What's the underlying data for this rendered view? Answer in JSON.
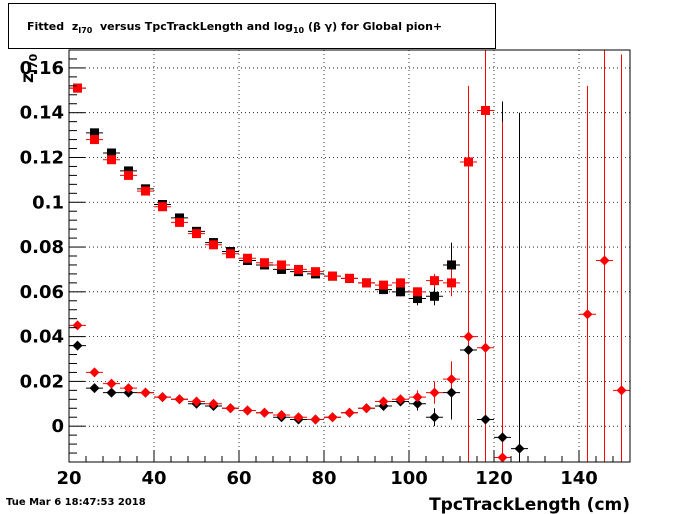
{
  "title": {
    "fitted": "Fitted",
    "z": "z",
    "z_sub": "I70",
    "mid": "versus TpcTrackLength and log",
    "log_sub": "10",
    "tail": "(β γ) for Global pion+"
  },
  "timestamp": "Tue Mar  6 18:47:53 2018",
  "chart_data": {
    "type": "scatter",
    "xlabel": "TpcTrackLength (cm)",
    "ylabel": "z_I70",
    "xlim": [
      20,
      152
    ],
    "ylim": [
      -0.016,
      0.168
    ],
    "grid": true,
    "xticks": [
      20,
      40,
      60,
      80,
      100,
      120,
      140
    ],
    "xtick_labels": [
      "20",
      "40",
      "60",
      "80",
      "100",
      "120",
      "140"
    ],
    "yticks": [
      0,
      0.02,
      0.04,
      0.06,
      0.08,
      0.1,
      0.12,
      0.14,
      0.16
    ],
    "ytick_labels": [
      "0",
      "0.02",
      "0.04",
      "0.06",
      "0.08",
      "0.1",
      "0.12",
      "0.14",
      "0.16"
    ],
    "series": [
      {
        "color": "#000000",
        "marker": "square",
        "x": [
          22,
          26,
          30,
          34,
          38,
          42,
          46,
          50,
          54,
          58,
          62,
          66,
          70,
          74,
          78,
          82,
          86,
          90,
          94,
          98,
          102,
          106,
          110
        ],
        "y": [
          0.151,
          0.131,
          0.122,
          0.114,
          0.106,
          0.099,
          0.093,
          0.087,
          0.082,
          0.078,
          0.074,
          0.072,
          0.07,
          0.069,
          0.068,
          0.067,
          0.066,
          0.064,
          0.061,
          0.06,
          0.057,
          0.058,
          0.072
        ],
        "yerr": [
          0,
          0,
          0,
          0,
          0,
          0,
          0,
          0,
          0,
          0,
          0,
          0,
          0,
          0,
          0,
          0,
          0,
          0,
          0,
          0.002,
          0.003,
          0.004,
          0.01
        ]
      },
      {
        "color": "#ff0000",
        "marker": "square",
        "x": [
          22,
          26,
          30,
          34,
          38,
          42,
          46,
          50,
          54,
          58,
          62,
          66,
          70,
          74,
          78,
          82,
          86,
          90,
          94,
          98,
          102,
          106,
          110,
          114,
          118
        ],
        "y": [
          0.151,
          0.128,
          0.119,
          0.112,
          0.105,
          0.098,
          0.091,
          0.086,
          0.081,
          0.077,
          0.075,
          0.073,
          0.072,
          0.07,
          0.069,
          0.067,
          0.066,
          0.064,
          0.063,
          0.064,
          0.06,
          0.065,
          0.064,
          0.118,
          0.141
        ],
        "yerr": [
          0,
          0,
          0,
          0,
          0,
          0,
          0,
          0,
          0,
          0,
          0,
          0,
          0,
          0,
          0,
          0,
          0,
          0,
          0,
          0.002,
          0.002,
          0.003,
          0.006,
          0.03,
          0.03
        ]
      },
      {
        "color": "#000000",
        "marker": "diamond",
        "x": [
          22,
          26,
          30,
          34,
          38,
          42,
          46,
          50,
          54,
          58,
          62,
          66,
          70,
          74,
          78,
          82,
          86,
          90,
          94,
          98,
          102,
          106,
          110,
          114,
          118,
          122,
          126
        ],
        "y": [
          0.036,
          0.017,
          0.015,
          0.015,
          0.015,
          0.013,
          0.012,
          0.01,
          0.009,
          0.008,
          0.007,
          0.006,
          0.004,
          0.003,
          0.003,
          0.004,
          0.006,
          0.008,
          0.009,
          0.011,
          0.01,
          0.004,
          0.015,
          0.034,
          0.003,
          -0.005,
          -0.01
        ],
        "yerr": [
          0,
          0,
          0,
          0,
          0,
          0,
          0,
          0,
          0,
          0,
          0,
          0,
          0,
          0,
          0,
          0,
          0,
          0,
          0,
          0.002,
          0.003,
          0.004,
          0.012,
          0.06,
          0.1,
          0.15,
          0.15
        ]
      },
      {
        "color": "#ff0000",
        "marker": "diamond",
        "x": [
          22,
          26,
          30,
          34,
          38,
          42,
          46,
          50,
          54,
          58,
          62,
          66,
          70,
          74,
          78,
          82,
          86,
          90,
          94,
          98,
          102,
          106,
          110,
          114,
          118,
          122,
          142,
          146,
          150
        ],
        "y": [
          0.045,
          0.024,
          0.019,
          0.017,
          0.015,
          0.013,
          0.012,
          0.011,
          0.01,
          0.008,
          0.007,
          0.006,
          0.005,
          0.004,
          0.003,
          0.004,
          0.006,
          0.008,
          0.011,
          0.012,
          0.013,
          0.015,
          0.021,
          0.04,
          0.035,
          -0.014,
          0.05,
          0.074,
          0.016
        ],
        "yerr": [
          0,
          0,
          0,
          0,
          0,
          0,
          0,
          0,
          0,
          0,
          0,
          0,
          0,
          0,
          0,
          0,
          0,
          0,
          0,
          0.002,
          0.003,
          0.005,
          0.008,
          0.112,
          0.15,
          0.15,
          0.102,
          0.15,
          0.15
        ]
      }
    ]
  }
}
